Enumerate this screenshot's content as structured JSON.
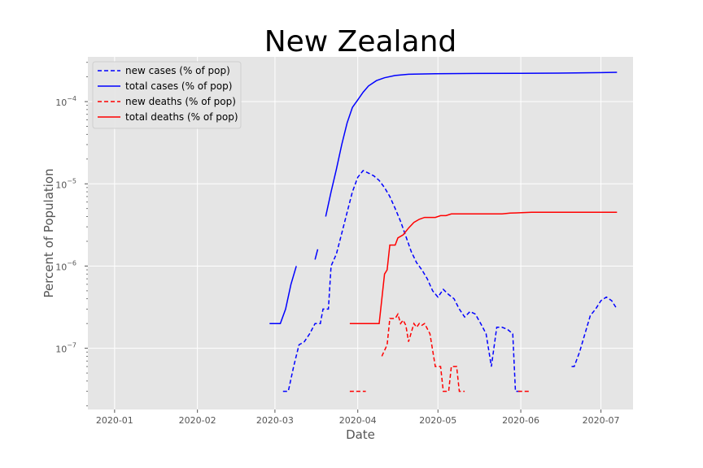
{
  "chart_data": {
    "type": "line",
    "title": "New Zealand",
    "xlabel": "Date",
    "ylabel": "Percent of Population",
    "yscale": "log",
    "ylim": [
      1.8e-08,
      0.00035
    ],
    "xlim": [
      "2019-12-22",
      "2020-07-13"
    ],
    "grid": true,
    "legend_position": "top-left",
    "x_ticks": [
      "2020-01",
      "2020-02",
      "2020-03",
      "2020-04",
      "2020-05",
      "2020-06",
      "2020-07"
    ],
    "y_ticks": [
      {
        "value": 1e-07,
        "label": "10",
        "exp": "−7"
      },
      {
        "value": 1e-06,
        "label": "10",
        "exp": "−6"
      },
      {
        "value": 1e-05,
        "label": "10",
        "exp": "−5"
      },
      {
        "value": 0.0001,
        "label": "10",
        "exp": "−4"
      }
    ],
    "series": [
      {
        "name": "new cases (% of pop)",
        "color": "#0000ff",
        "style": "dashed",
        "points": [
          [
            "2020-02-28",
            null
          ],
          [
            "2020-03-04",
            3e-08
          ],
          [
            "2020-03-06",
            3e-08
          ],
          [
            "2020-03-08",
            6e-08
          ],
          [
            "2020-03-10",
            1.1e-07
          ],
          [
            "2020-03-12",
            1.2e-07
          ],
          [
            "2020-03-14",
            1.5e-07
          ],
          [
            "2020-03-16",
            2e-07
          ],
          [
            "2020-03-18",
            2e-07
          ],
          [
            "2020-03-19",
            3e-07
          ],
          [
            "2020-03-21",
            3e-07
          ],
          [
            "2020-03-22",
            1e-06
          ],
          [
            "2020-03-24",
            1.4e-06
          ],
          [
            "2020-03-26",
            2.5e-06
          ],
          [
            "2020-03-28",
            4.5e-06
          ],
          [
            "2020-03-30",
            8e-06
          ],
          [
            "2020-04-01",
            1.2e-05
          ],
          [
            "2020-04-03",
            1.45e-05
          ],
          [
            "2020-04-05",
            1.35e-05
          ],
          [
            "2020-04-07",
            1.25e-05
          ],
          [
            "2020-04-09",
            1.1e-05
          ],
          [
            "2020-04-11",
            9e-06
          ],
          [
            "2020-04-13",
            7e-06
          ],
          [
            "2020-04-15",
            5e-06
          ],
          [
            "2020-04-17",
            3.5e-06
          ],
          [
            "2020-04-19",
            2.3e-06
          ],
          [
            "2020-04-21",
            1.5e-06
          ],
          [
            "2020-04-23",
            1.1e-06
          ],
          [
            "2020-04-25",
            9e-07
          ],
          [
            "2020-04-27",
            7e-07
          ],
          [
            "2020-04-29",
            5e-07
          ],
          [
            "2020-05-01",
            4.2e-07
          ],
          [
            "2020-05-03",
            5.2e-07
          ],
          [
            "2020-05-05",
            4.5e-07
          ],
          [
            "2020-05-07",
            4e-07
          ],
          [
            "2020-05-09",
            3e-07
          ],
          [
            "2020-05-11",
            2.4e-07
          ],
          [
            "2020-05-13",
            2.8e-07
          ],
          [
            "2020-05-15",
            2.6e-07
          ],
          [
            "2020-05-17",
            2e-07
          ],
          [
            "2020-05-19",
            1.5e-07
          ],
          [
            "2020-05-21",
            6e-08
          ],
          [
            "2020-05-23",
            1.8e-07
          ],
          [
            "2020-05-25",
            1.8e-07
          ],
          [
            "2020-05-27",
            1.7e-07
          ],
          [
            "2020-05-29",
            1.5e-07
          ],
          [
            "2020-05-30",
            3e-08
          ],
          [
            "2020-06-01",
            3e-08
          ],
          [
            "2020-06-02",
            null
          ],
          [
            "2020-06-19",
            null
          ],
          [
            "2020-06-20",
            6e-08
          ],
          [
            "2020-06-21",
            6e-08
          ],
          [
            "2020-06-23",
            9e-08
          ],
          [
            "2020-06-25",
            1.5e-07
          ],
          [
            "2020-06-27",
            2.5e-07
          ],
          [
            "2020-06-29",
            3e-07
          ],
          [
            "2020-07-01",
            3.8e-07
          ],
          [
            "2020-07-03",
            4.2e-07
          ],
          [
            "2020-07-05",
            3.8e-07
          ],
          [
            "2020-07-07",
            3e-07
          ]
        ]
      },
      {
        "name": "total cases (% of pop)",
        "color": "#0000ff",
        "style": "solid",
        "points": [
          [
            "2020-02-28",
            null
          ],
          [
            "2020-02-28",
            2e-07
          ],
          [
            "2020-03-03",
            2e-07
          ],
          [
            "2020-03-05",
            3e-07
          ],
          [
            "2020-03-07",
            6e-07
          ],
          [
            "2020-03-09",
            1e-06
          ],
          [
            "2020-03-10",
            null
          ],
          [
            "2020-03-16",
            1.2e-06
          ],
          [
            "2020-03-17",
            1.6e-06
          ],
          [
            "2020-03-18",
            null
          ],
          [
            "2020-03-20",
            4e-06
          ],
          [
            "2020-03-22",
            8e-06
          ],
          [
            "2020-03-24",
            1.5e-05
          ],
          [
            "2020-03-26",
            3e-05
          ],
          [
            "2020-03-28",
            5.5e-05
          ],
          [
            "2020-03-30",
            8.5e-05
          ],
          [
            "2020-04-01",
            0.000105
          ],
          [
            "2020-04-03",
            0.00013
          ],
          [
            "2020-04-05",
            0.000155
          ],
          [
            "2020-04-08",
            0.00018
          ],
          [
            "2020-04-11",
            0.000195
          ],
          [
            "2020-04-15",
            0.000208
          ],
          [
            "2020-04-20",
            0.000215
          ],
          [
            "2020-04-30",
            0.000218
          ],
          [
            "2020-05-15",
            0.00022
          ],
          [
            "2020-06-01",
            0.000221
          ],
          [
            "2020-06-15",
            0.000222
          ],
          [
            "2020-07-01",
            0.000225
          ],
          [
            "2020-07-07",
            0.000227
          ]
        ]
      },
      {
        "name": "new deaths (% of pop)",
        "color": "#ff0000",
        "style": "dashed",
        "points": [
          [
            "2020-03-28",
            null
          ],
          [
            "2020-03-29",
            3e-08
          ],
          [
            "2020-03-31",
            3e-08
          ],
          [
            "2020-04-04",
            3e-08
          ],
          [
            "2020-04-05",
            null
          ],
          [
            "2020-04-09",
            null
          ],
          [
            "2020-04-10",
            8e-08
          ],
          [
            "2020-04-12",
            1.1e-07
          ],
          [
            "2020-04-13",
            2.3e-07
          ],
          [
            "2020-04-15",
            2.3e-07
          ],
          [
            "2020-04-16",
            2.6e-07
          ],
          [
            "2020-04-17",
            2e-07
          ],
          [
            "2020-04-18",
            2.2e-07
          ],
          [
            "2020-04-19",
            1.9e-07
          ],
          [
            "2020-04-20",
            1.2e-07
          ],
          [
            "2020-04-22",
            2e-07
          ],
          [
            "2020-04-23",
            1.8e-07
          ],
          [
            "2020-04-24",
            2e-07
          ],
          [
            "2020-04-25",
            1.9e-07
          ],
          [
            "2020-04-26",
            2e-07
          ],
          [
            "2020-04-28",
            1.5e-07
          ],
          [
            "2020-04-30",
            6e-08
          ],
          [
            "2020-05-02",
            6e-08
          ],
          [
            "2020-05-03",
            3e-08
          ],
          [
            "2020-05-05",
            3e-08
          ],
          [
            "2020-05-06",
            6e-08
          ],
          [
            "2020-05-08",
            6e-08
          ],
          [
            "2020-05-09",
            3e-08
          ],
          [
            "2020-05-11",
            3e-08
          ],
          [
            "2020-05-12",
            null
          ],
          [
            "2020-05-30",
            null
          ],
          [
            "2020-05-31",
            3e-08
          ],
          [
            "2020-06-04",
            3e-08
          ],
          [
            "2020-06-05",
            null
          ]
        ]
      },
      {
        "name": "total deaths (% of pop)",
        "color": "#ff0000",
        "style": "solid",
        "points": [
          [
            "2020-03-28",
            null
          ],
          [
            "2020-03-29",
            2e-07
          ],
          [
            "2020-04-09",
            2e-07
          ],
          [
            "2020-04-11",
            8e-07
          ],
          [
            "2020-04-12",
            9e-07
          ],
          [
            "2020-04-13",
            1.8e-06
          ],
          [
            "2020-04-15",
            1.8e-06
          ],
          [
            "2020-04-16",
            2.2e-06
          ],
          [
            "2020-04-18",
            2.4e-06
          ],
          [
            "2020-04-20",
            2.9e-06
          ],
          [
            "2020-04-22",
            3.4e-06
          ],
          [
            "2020-04-24",
            3.7e-06
          ],
          [
            "2020-04-26",
            3.9e-06
          ],
          [
            "2020-04-30",
            3.9e-06
          ],
          [
            "2020-05-02",
            4.1e-06
          ],
          [
            "2020-05-04",
            4.1e-06
          ],
          [
            "2020-05-06",
            4.3e-06
          ],
          [
            "2020-05-15",
            4.3e-06
          ],
          [
            "2020-05-25",
            4.3e-06
          ],
          [
            "2020-05-28",
            4.4e-06
          ],
          [
            "2020-06-05",
            4.5e-06
          ],
          [
            "2020-06-20",
            4.5e-06
          ],
          [
            "2020-07-07",
            4.5e-06
          ]
        ]
      }
    ]
  }
}
